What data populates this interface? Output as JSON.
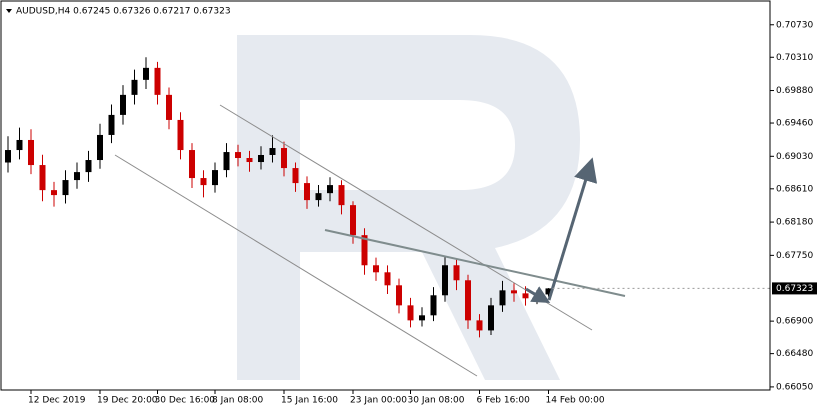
{
  "chart_data": {
    "type": "candlestick",
    "title": "AUDUSD,H4  0.67245 0.67326 0.67217 0.67323",
    "categories": [
      null,
      null,
      "12 Dec 2019",
      null,
      null,
      null,
      null,
      null,
      "19 Dec 20:00",
      null,
      null,
      null,
      null,
      "30 Dec 16:00",
      null,
      null,
      null,
      null,
      "8 Jan 08:00",
      null,
      null,
      null,
      null,
      null,
      "15 Jan 16:00",
      null,
      null,
      null,
      null,
      null,
      "23 Jan 00:00",
      null,
      null,
      null,
      null,
      "30 Jan 08:00",
      null,
      null,
      null,
      null,
      null,
      "6 Feb 16:00",
      null,
      null,
      null,
      null,
      null,
      "14 Feb 00:00"
    ],
    "open": [
      0.6895,
      0.69111,
      0.69241,
      0.68917,
      0.68593,
      0.68529,
      0.68723,
      0.68826,
      0.68982,
      0.69306,
      0.69565,
      0.69824,
      0.70018,
      0.70173,
      0.69824,
      0.695,
      0.69111,
      0.68749,
      0.68658,
      0.68852,
      0.69085,
      0.69008,
      0.68956,
      0.69047,
      0.69137,
      0.68878,
      0.68684,
      0.68464,
      0.68554,
      0.68658,
      0.68399,
      0.68011,
      0.67622,
      0.67531,
      0.67363,
      0.67104,
      0.6691,
      0.66975,
      0.67234,
      0.67622,
      0.67428,
      0.6691,
      0.6678,
      0.67104,
      0.67298,
      0.67259,
      0.67195,
      0.67245
    ],
    "high": [
      0.6929,
      0.694,
      0.6938,
      0.6905,
      0.687,
      0.6885,
      0.6895,
      0.691,
      0.6945,
      0.697,
      0.6995,
      0.7015,
      0.7031,
      0.7025,
      0.6992,
      0.696,
      0.692,
      0.6885,
      0.6895,
      0.692,
      0.6918,
      0.691,
      0.6916,
      0.693,
      0.6922,
      0.6895,
      0.6877,
      0.6866,
      0.6876,
      0.6872,
      0.6845,
      0.681,
      0.6772,
      0.6762,
      0.6745,
      0.672,
      0.6708,
      0.6734,
      0.6774,
      0.677,
      0.675,
      0.6699,
      0.672,
      0.6742,
      0.674,
      0.6735,
      0.673,
      0.67326
    ],
    "low": [
      0.6882,
      0.6899,
      0.688,
      0.6845,
      0.6838,
      0.6842,
      0.6861,
      0.687,
      0.6887,
      0.692,
      0.6944,
      0.697,
      0.699,
      0.697,
      0.6938,
      0.6899,
      0.6862,
      0.685,
      0.6856,
      0.6876,
      0.689,
      0.6883,
      0.6886,
      0.6895,
      0.6877,
      0.6857,
      0.6835,
      0.6838,
      0.6845,
      0.6828,
      0.679,
      0.675,
      0.6742,
      0.6725,
      0.67,
      0.6682,
      0.6683,
      0.669,
      0.6715,
      0.673,
      0.668,
      0.6669,
      0.6672,
      0.6702,
      0.6715,
      0.671,
      0.6712,
      0.67217
    ],
    "close": [
      0.69111,
      0.69241,
      0.68917,
      0.68593,
      0.68529,
      0.68723,
      0.68826,
      0.68982,
      0.69306,
      0.69565,
      0.69824,
      0.70018,
      0.70173,
      0.69824,
      0.695,
      0.69111,
      0.68749,
      0.68658,
      0.68852,
      0.69085,
      0.69008,
      0.68956,
      0.69047,
      0.69137,
      0.68878,
      0.68684,
      0.68464,
      0.68554,
      0.68658,
      0.68399,
      0.68011,
      0.67622,
      0.67531,
      0.67363,
      0.67104,
      0.6691,
      0.66975,
      0.67234,
      0.67622,
      0.67428,
      0.6691,
      0.6678,
      0.67104,
      0.67298,
      0.67259,
      0.67195,
      0.67221,
      0.67323
    ],
    "up_color": "#000000",
    "down_color": "#cc0000",
    "ylim": [
      0.6601,
      0.7105
    ],
    "yticks": [
      {
        "value": 0.7073,
        "label": "0.70730"
      },
      {
        "value": 0.7031,
        "label": "0.70310"
      },
      {
        "value": 0.6988,
        "label": "0.69880"
      },
      {
        "value": 0.6946,
        "label": "0.69460"
      },
      {
        "value": 0.6903,
        "label": "0.69030"
      },
      {
        "value": 0.6861,
        "label": "0.68610"
      },
      {
        "value": 0.6818,
        "label": "0.68180"
      },
      {
        "value": 0.6775,
        "label": "0.67750"
      },
      {
        "value": 0.669,
        "label": "0.66900"
      },
      {
        "value": 0.6648,
        "label": "0.66480"
      },
      {
        "value": 0.6605,
        "label": "0.66050"
      }
    ],
    "current_price": {
      "value": 0.67323,
      "label": "0.67323"
    }
  }
}
